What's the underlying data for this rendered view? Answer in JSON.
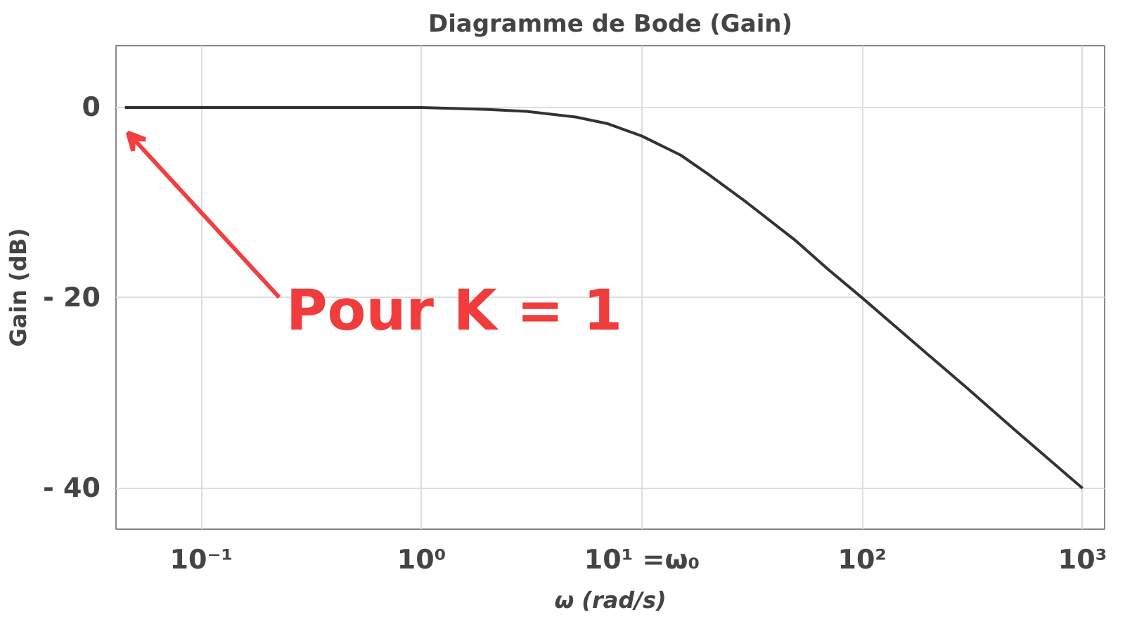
{
  "chart_data": {
    "type": "line",
    "title": "Diagramme de Bode (Gain)",
    "xlabel": "ω (rad/s)",
    "ylabel": "Gain (dB)",
    "log": "x",
    "x": [
      0.045,
      0.1,
      0.3,
      1,
      2,
      3,
      5,
      7,
      10,
      15,
      20,
      30,
      50,
      70,
      100,
      200,
      300,
      500,
      1000
    ],
    "series": [
      {
        "color": "#333333",
        "values": [
          0,
          0,
          0,
          0,
          -0.2,
          -0.4,
          -1,
          -1.7,
          -3,
          -5,
          -7,
          -10,
          -14,
          -17,
          -20,
          -26,
          -29.5,
          -34,
          -40
        ]
      }
    ],
    "xlim": [
      0.041,
      1260
    ],
    "ylim": [
      -44.3,
      6.5
    ],
    "xticks": [
      {
        "value": 0.1,
        "label": "10⁻¹"
      },
      {
        "value": 1,
        "label": "10⁰"
      },
      {
        "value": 10,
        "label": "10¹ =ω₀"
      },
      {
        "value": 100,
        "label": "10²"
      },
      {
        "value": 1000,
        "label": "10³"
      }
    ],
    "yticks": [
      {
        "value": 0,
        "label": "0"
      },
      {
        "value": -20,
        "label": "- 20"
      },
      {
        "value": -40,
        "label": "- 40"
      }
    ],
    "grid": true,
    "line_style": "solid",
    "annotations": [
      "Pour K = 1"
    ]
  }
}
